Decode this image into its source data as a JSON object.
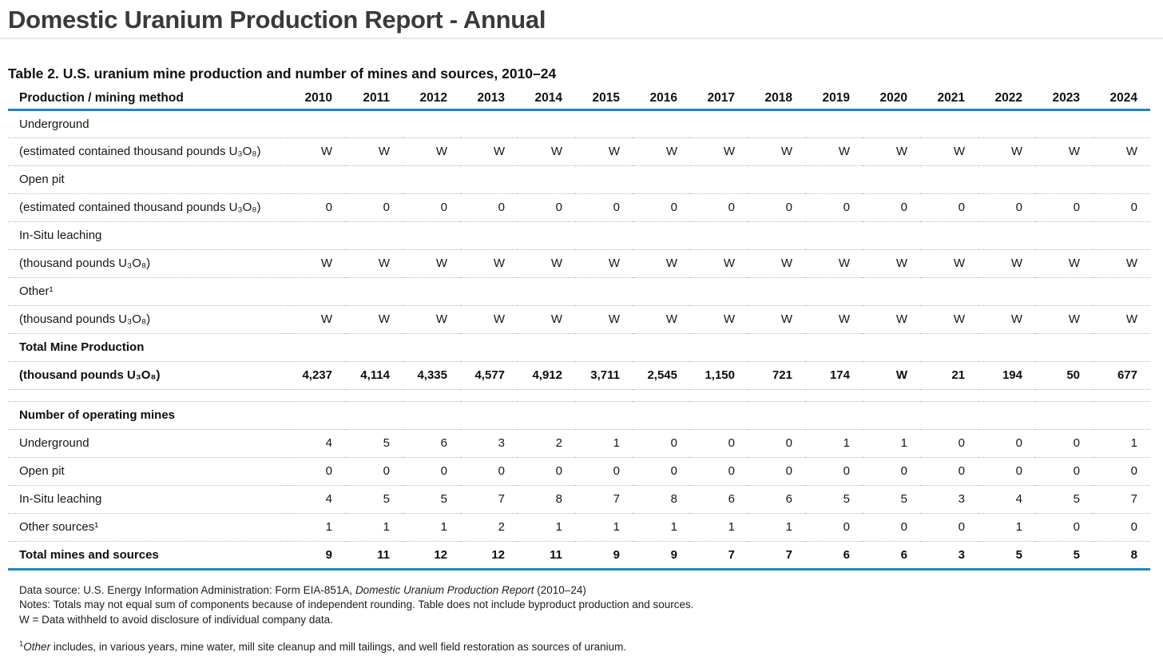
{
  "page": {
    "title": "Domestic Uranium Production Report - Annual"
  },
  "colors": {
    "accent_blue": "#1b87c8",
    "title_gray": "#3a3a3a"
  },
  "table": {
    "caption": "Table 2. U.S. uranium mine production and number of mines and sources, 2010–24",
    "label_column_header": "Production / mining method",
    "year_columns": [
      "2010",
      "2011",
      "2012",
      "2013",
      "2014",
      "2015",
      "2016",
      "2017",
      "2018",
      "2019",
      "2020",
      "2021",
      "2022",
      "2023",
      "2024"
    ],
    "rows": [
      {
        "type": "section",
        "bold": false,
        "label": "Underground",
        "values": null
      },
      {
        "type": "data",
        "bold": false,
        "label": "(estimated contained thousand pounds U₃O₈)",
        "values": [
          "W",
          "W",
          "W",
          "W",
          "W",
          "W",
          "W",
          "W",
          "W",
          "W",
          "W",
          "W",
          "W",
          "W",
          "W"
        ]
      },
      {
        "type": "section",
        "bold": false,
        "label": "Open pit",
        "values": null
      },
      {
        "type": "data",
        "bold": false,
        "label": "(estimated contained thousand pounds U₃O₈)",
        "values": [
          "0",
          "0",
          "0",
          "0",
          "0",
          "0",
          "0",
          "0",
          "0",
          "0",
          "0",
          "0",
          "0",
          "0",
          "0"
        ]
      },
      {
        "type": "section",
        "bold": false,
        "label": "In-Situ leaching",
        "values": null
      },
      {
        "type": "data",
        "bold": false,
        "label": "(thousand pounds U₃O₈)",
        "values": [
          "W",
          "W",
          "W",
          "W",
          "W",
          "W",
          "W",
          "W",
          "W",
          "W",
          "W",
          "W",
          "W",
          "W",
          "W"
        ]
      },
      {
        "type": "section",
        "bold": false,
        "label": "Other¹",
        "values": null
      },
      {
        "type": "data",
        "bold": false,
        "label": "(thousand pounds U₃O₈)",
        "values": [
          "W",
          "W",
          "W",
          "W",
          "W",
          "W",
          "W",
          "W",
          "W",
          "W",
          "W",
          "W",
          "W",
          "W",
          "W"
        ]
      },
      {
        "type": "section",
        "bold": true,
        "label": "Total Mine Production",
        "values": null
      },
      {
        "type": "data",
        "bold": true,
        "label": "(thousand pounds U₃O₈)",
        "values": [
          "4,237",
          "4,114",
          "4,335",
          "4,577",
          "4,912",
          "3,711",
          "2,545",
          "1,150",
          "721",
          "174",
          "W",
          "21",
          "194",
          "50",
          "677"
        ]
      },
      {
        "type": "spacer",
        "bold": false,
        "label": "",
        "values": null
      },
      {
        "type": "section",
        "bold": true,
        "label": "Number of operating mines",
        "values": null
      },
      {
        "type": "data",
        "bold": false,
        "label": "Underground",
        "values": [
          "4",
          "5",
          "6",
          "3",
          "2",
          "1",
          "0",
          "0",
          "0",
          "1",
          "1",
          "0",
          "0",
          "0",
          "1"
        ]
      },
      {
        "type": "data",
        "bold": false,
        "label": "Open pit",
        "values": [
          "0",
          "0",
          "0",
          "0",
          "0",
          "0",
          "0",
          "0",
          "0",
          "0",
          "0",
          "0",
          "0",
          "0",
          "0"
        ]
      },
      {
        "type": "data",
        "bold": false,
        "label": "In-Situ leaching",
        "values": [
          "4",
          "5",
          "5",
          "7",
          "8",
          "7",
          "8",
          "6",
          "6",
          "5",
          "5",
          "3",
          "4",
          "5",
          "7"
        ]
      },
      {
        "type": "data",
        "bold": false,
        "label": "Other sources¹",
        "values": [
          "1",
          "1",
          "1",
          "2",
          "1",
          "1",
          "1",
          "1",
          "1",
          "0",
          "0",
          "0",
          "1",
          "0",
          "0"
        ]
      },
      {
        "type": "data",
        "bold": true,
        "last": true,
        "label": "Total mines and sources",
        "values": [
          "9",
          "11",
          "12",
          "12",
          "11",
          "9",
          "9",
          "7",
          "7",
          "6",
          "6",
          "3",
          "5",
          "5",
          "8"
        ]
      }
    ]
  },
  "footnotes": {
    "data_source_prefix": "Data source: U.S. Energy Information Administration: Form EIA-851A, ",
    "data_source_italic": "Domestic Uranium Production Report",
    "data_source_suffix": " (2010–24)",
    "notes": "Notes: Totals may not equal sum of components because of independent rounding. Table does not include byproduct production and sources.",
    "w_definition": "W = Data withheld to avoid disclosure of individual company data.",
    "other_sup": "1",
    "other_italic": "Other",
    "other_text": " includes, in various years, mine water, mill site cleanup and mill tailings, and well field restoration as sources of uranium."
  }
}
